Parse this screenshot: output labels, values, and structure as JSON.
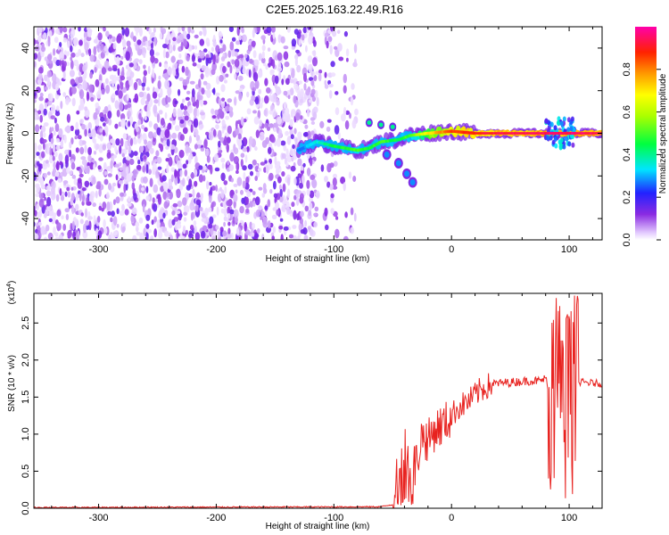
{
  "title": "C2E5.2025.163.22.49.R16",
  "chart_data": [
    {
      "type": "heatmap",
      "xlabel": "Height of straight line (km)",
      "ylabel": "Frequency (Hz)",
      "xlim": [
        -355,
        128
      ],
      "ylim": [
        -50,
        50
      ],
      "xticks": [
        -300,
        -200,
        -100,
        0,
        100
      ],
      "yticks": [
        -40,
        -20,
        0,
        20,
        40
      ],
      "colorbar": {
        "label": "Normalized spectral amplitude",
        "range": [
          0,
          1
        ],
        "ticks": [
          0.0,
          0.2,
          0.4,
          0.6,
          0.8
        ],
        "colormap": "rainbow (white-violet-blue-cyan-green-yellow-red-magenta)"
      },
      "features": {
        "noise_region_x": [
          -355,
          -80
        ],
        "noise_dense_x": [
          -355,
          -115
        ],
        "sparse_spots_x": [
          -115,
          -80
        ],
        "ridge": [
          {
            "x": -130,
            "y": -8,
            "amp": 0.25
          },
          {
            "x": -115,
            "y": -4,
            "amp": 0.35
          },
          {
            "x": -100,
            "y": -6,
            "amp": 0.45
          },
          {
            "x": -80,
            "y": -8,
            "amp": 0.5
          },
          {
            "x": -70,
            "y": -7,
            "amp": 0.45
          },
          {
            "x": -60,
            "y": -4,
            "amp": 0.5
          },
          {
            "x": -45,
            "y": -3,
            "amp": 0.45
          },
          {
            "x": -35,
            "y": -1,
            "amp": 0.5
          },
          {
            "x": -20,
            "y": 0,
            "amp": 0.7
          },
          {
            "x": 0,
            "y": 1,
            "amp": 0.85
          },
          {
            "x": 20,
            "y": 0,
            "amp": 0.9
          },
          {
            "x": 60,
            "y": 0,
            "amp": 0.95
          },
          {
            "x": 100,
            "y": 0,
            "amp": 0.95
          },
          {
            "x": 128,
            "y": 0,
            "amp": 0.95
          }
        ],
        "branch": [
          {
            "x": -55,
            "y": -10
          },
          {
            "x": -45,
            "y": -14
          },
          {
            "x": -38,
            "y": -19
          },
          {
            "x": -33,
            "y": -23
          }
        ],
        "upper_branch": [
          {
            "x": -70,
            "y": 5
          },
          {
            "x": -60,
            "y": 4
          },
          {
            "x": -50,
            "y": 3
          }
        ],
        "late_burst_x": [
          80,
          105
        ],
        "late_burst_y": [
          -7,
          7
        ]
      }
    },
    {
      "type": "line",
      "xlabel": "Height of straight line (km)",
      "ylabel": "SNR (10 * v/v)",
      "y_multiplier": "(x10⁴)",
      "y_multiplier_base": "(x10",
      "y_multiplier_exp": "4",
      "y_multiplier_close": ")",
      "xlim": [
        -355,
        128
      ],
      "ylim": [
        0,
        2.9
      ],
      "xticks": [
        -300,
        -200,
        -100,
        0,
        100
      ],
      "yticks": [
        0.0,
        0.5,
        1.0,
        1.5,
        2.0,
        2.5
      ],
      "ytick_labels": [
        "0.0",
        "0.5",
        "1.0",
        "1.5",
        "2.0",
        "2.5"
      ],
      "series": [
        {
          "color": "#e8221f",
          "points": [
            {
              "x": -355,
              "y": 0.01
            },
            {
              "x": -60,
              "y": 0.02
            },
            {
              "x": -50,
              "y": 0.05
            },
            {
              "x": -45,
              "y": 0.45
            },
            {
              "x": -40,
              "y": 0.9
            },
            {
              "x": -35,
              "y": 0.5
            },
            {
              "x": -30,
              "y": 0.6
            },
            {
              "x": -25,
              "y": 1.0
            },
            {
              "x": -20,
              "y": 0.9
            },
            {
              "x": -15,
              "y": 1.05
            },
            {
              "x": -5,
              "y": 1.15
            },
            {
              "x": 5,
              "y": 1.35
            },
            {
              "x": 15,
              "y": 1.45
            },
            {
              "x": 25,
              "y": 1.6
            },
            {
              "x": 35,
              "y": 1.68
            },
            {
              "x": 50,
              "y": 1.7
            },
            {
              "x": 65,
              "y": 1.72
            },
            {
              "x": 75,
              "y": 1.72
            },
            {
              "x": 80,
              "y": 1.75
            },
            {
              "x": 85,
              "y": 1.5
            },
            {
              "x": 90,
              "y": 1.4
            },
            {
              "x": 95,
              "y": 1.6
            },
            {
              "x": 100,
              "y": 1.45
            },
            {
              "x": 105,
              "y": 1.65
            },
            {
              "x": 110,
              "y": 1.7
            },
            {
              "x": 128,
              "y": 1.68
            }
          ],
          "noise_bands": [
            {
              "x": [
                -50,
                -30
              ],
              "amp": 0.35
            },
            {
              "x": [
                -30,
                0
              ],
              "amp": 0.3
            },
            {
              "x": [
                0,
                35
              ],
              "amp": 0.18
            },
            {
              "x": [
                35,
                82
              ],
              "amp": 0.06
            },
            {
              "x": [
                82,
                108
              ],
              "amp": 1.3
            },
            {
              "x": [
                108,
                128
              ],
              "amp": 0.05
            }
          ]
        }
      ]
    }
  ]
}
